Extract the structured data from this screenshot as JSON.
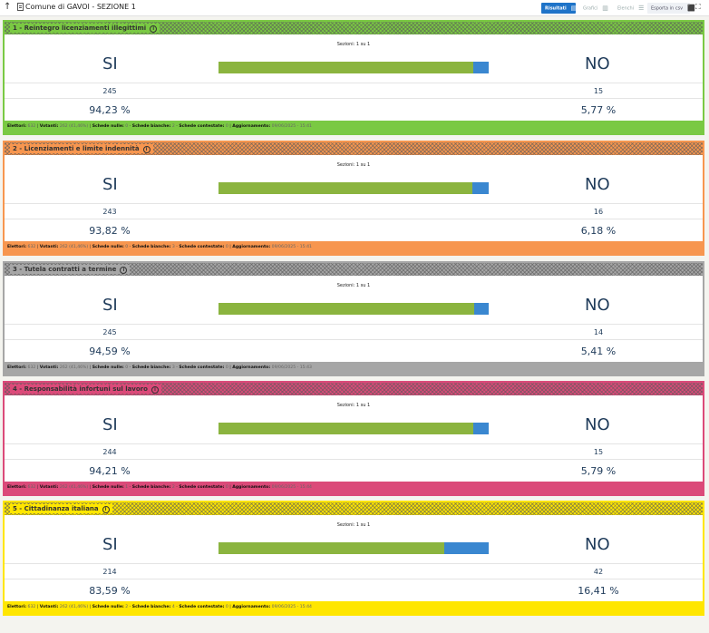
{
  "header": {
    "title": "Comune di GAVOI - SEZIONE 1",
    "tools": {
      "results": "Risultati",
      "charts": "Grafici",
      "lists": "Elenchi",
      "export": "Esporta in csv"
    }
  },
  "cards": [
    {
      "title": "1 - Reintegro licenziamenti illegittimi",
      "color": "#7ac943",
      "sections": "Sezioni: 1 su 1",
      "si_label": "SI",
      "no_label": "NO",
      "si_votes": "245",
      "no_votes": "15",
      "si_pct": "94,23 %",
      "no_pct": "5,77 %",
      "si_share": 94.23,
      "footer": {
        "electors_label": "Elettori:",
        "electors": "632",
        "voters_label": "Votanti:",
        "voters": "262 (41,46%)",
        "null_label": "Schede nulle:",
        "null": "0",
        "blank_label": "Schede bianche:",
        "blank": "2",
        "contested_label": "Schede contestate:",
        "contested": "0",
        "update_label": "Aggiornamento:",
        "update": "09/06/2025 - 15:41"
      }
    },
    {
      "title": "2 - Licenziamenti e limite indennità",
      "color": "#f7964f",
      "sections": "Sezioni: 1 su 1",
      "si_label": "SI",
      "no_label": "NO",
      "si_votes": "243",
      "no_votes": "16",
      "si_pct": "93,82 %",
      "no_pct": "6,18 %",
      "si_share": 93.82,
      "footer": {
        "electors_label": "Elettori:",
        "electors": "632",
        "voters_label": "Votanti:",
        "voters": "262 (41,46%)",
        "null_label": "Schede nulle:",
        "null": "0",
        "blank_label": "Schede bianche:",
        "blank": "3",
        "contested_label": "Schede contestate:",
        "contested": "0",
        "update_label": "Aggiornamento:",
        "update": "09/06/2025 - 15:41"
      }
    },
    {
      "title": "3 - Tutela contratti a termine",
      "color": "#a6a6a6",
      "sections": "Sezioni: 1 su 1",
      "si_label": "SI",
      "no_label": "NO",
      "si_votes": "245",
      "no_votes": "14",
      "si_pct": "94,59 %",
      "no_pct": "5,41 %",
      "si_share": 94.59,
      "footer": {
        "electors_label": "Elettori:",
        "electors": "632",
        "voters_label": "Votanti:",
        "voters": "262 (41,46%)",
        "null_label": "Schede nulle:",
        "null": "0",
        "blank_label": "Schede bianche:",
        "blank": "3",
        "contested_label": "Schede contestate:",
        "contested": "0",
        "update_label": "Aggiornamento:",
        "update": "09/06/2025 - 15:43"
      }
    },
    {
      "title": "4 - Responsabilità infortuni sul lavoro",
      "color": "#db4a79",
      "sections": "Sezioni: 1 su 1",
      "si_label": "SI",
      "no_label": "NO",
      "si_votes": "244",
      "no_votes": "15",
      "si_pct": "94,21 %",
      "no_pct": "5,79 %",
      "si_share": 94.21,
      "footer": {
        "electors_label": "Elettori:",
        "electors": "632",
        "voters_label": "Votanti:",
        "voters": "262 (41,46%)",
        "null_label": "Schede nulle:",
        "null": "1",
        "blank_label": "Schede bianche:",
        "blank": "2",
        "contested_label": "Schede contestate:",
        "contested": "0",
        "update_label": "Aggiornamento:",
        "update": "09/06/2025 - 15:44"
      }
    },
    {
      "title": "5 - Cittadinanza italiana",
      "color": "#ffe600",
      "sections": "Sezioni: 1 su 1",
      "si_label": "SI",
      "no_label": "NO",
      "si_votes": "214",
      "no_votes": "42",
      "si_pct": "83,59 %",
      "no_pct": "16,41 %",
      "si_share": 83.59,
      "footer": {
        "electors_label": "Elettori:",
        "electors": "632",
        "voters_label": "Votanti:",
        "voters": "262 (41,46%)",
        "null_label": "Schede nulle:",
        "null": "2",
        "blank_label": "Schede bianche:",
        "blank": "4",
        "contested_label": "Schede contestate:",
        "contested": "0",
        "update_label": "Aggiornamento:",
        "update": "09/06/2025 - 15:44"
      }
    }
  ]
}
